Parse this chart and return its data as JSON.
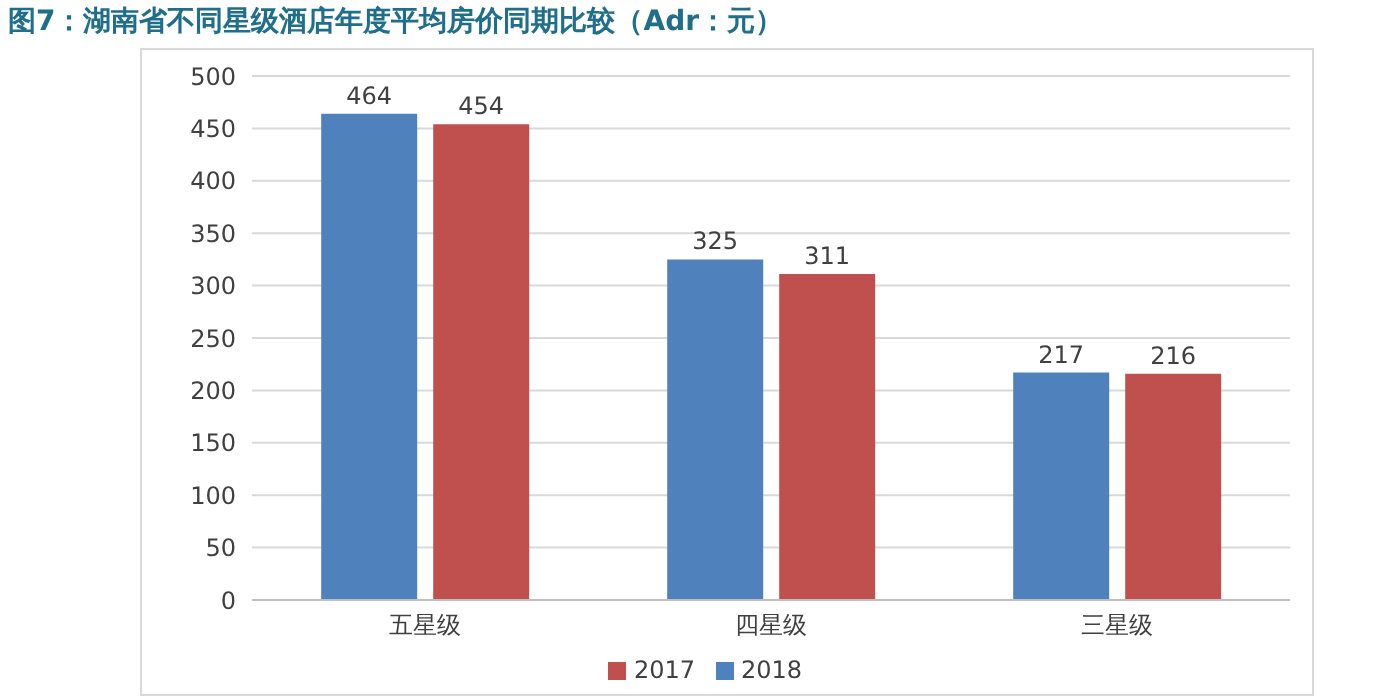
{
  "chart_data": {
    "type": "bar",
    "title": "图7：湖南省不同星级酒店年度平均房价同期比较（Adr：元）",
    "categories": [
      "五星级",
      "四星级",
      "三星级"
    ],
    "series": [
      {
        "name": "2018",
        "color": "#4f81bd",
        "values": [
          464,
          325,
          217
        ]
      },
      {
        "name": "2017",
        "color": "#c0504d",
        "values": [
          454,
          311,
          216
        ]
      }
    ],
    "ylim": [
      0,
      500
    ],
    "yticks": [
      0,
      50,
      100,
      150,
      200,
      250,
      300,
      350,
      400,
      450,
      500
    ],
    "grid": "y",
    "legend": "bottom",
    "data_labels": true
  }
}
